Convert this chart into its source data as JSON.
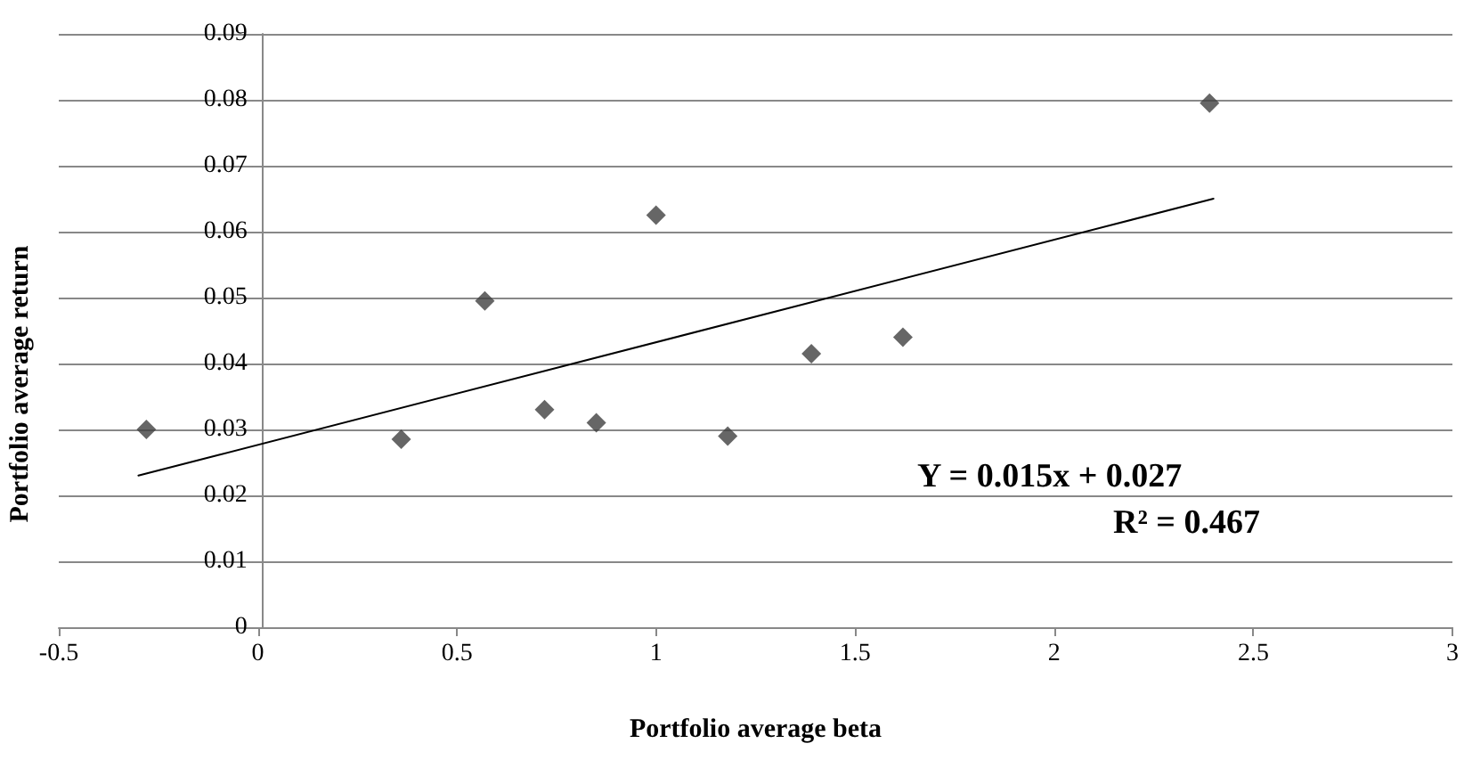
{
  "chart_data": {
    "type": "scatter",
    "xlabel": "Portfolio average beta",
    "ylabel": "Portfolio average return",
    "xlim": [
      -0.5,
      3
    ],
    "xticks": [
      -0.5,
      0,
      0.5,
      1,
      1.5,
      2,
      2.5,
      3
    ],
    "ylim": [
      0,
      0.09
    ],
    "yticks": [
      0,
      0.01,
      0.02,
      0.03,
      0.04,
      0.05,
      0.06,
      0.07,
      0.08,
      0.09
    ],
    "grid": "y",
    "marker": "diamond",
    "series": [
      {
        "color": "#404040",
        "x": [
          -0.28,
          0.36,
          0.57,
          0.72,
          0.85,
          1.0,
          1.18,
          1.39,
          1.62,
          2.39
        ],
        "values": [
          0.03,
          0.0285,
          0.0495,
          0.033,
          0.031,
          0.0625,
          0.029,
          0.0415,
          0.044,
          0.0795
        ]
      },
      {
        "type": "line",
        "marker": "none",
        "color": "#000000",
        "x": [
          -0.3,
          2.4
        ],
        "values": [
          0.023,
          0.065
        ]
      }
    ],
    "annotations": [
      "Y = 0.015x + 0.027",
      "R² = 0.467"
    ]
  }
}
